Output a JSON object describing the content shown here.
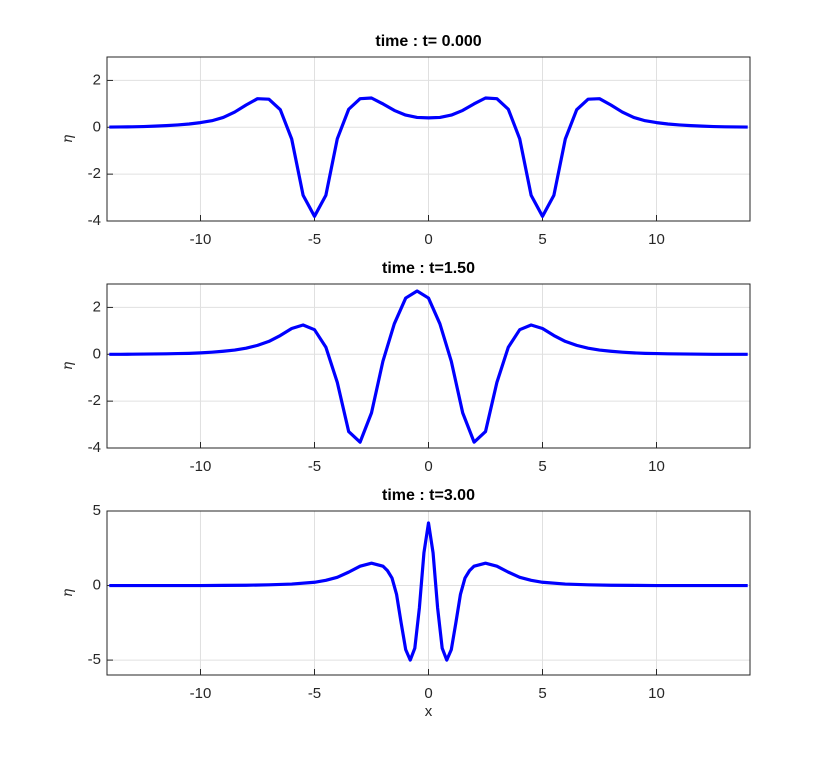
{
  "chart_data": [
    {
      "type": "line",
      "title": "time : t= 0.000",
      "ylabel": "η",
      "x": [
        -14,
        -13.5,
        -13,
        -12.5,
        -12,
        -11.5,
        -11,
        -10.5,
        -10,
        -9.5,
        -9,
        -8.5,
        -8,
        -7.5,
        -7,
        -6.5,
        -6,
        -5.5,
        -5,
        -4.5,
        -4,
        -3.5,
        -3,
        -2.5,
        -2,
        -1.5,
        -1,
        -0.5,
        0,
        0.5,
        1,
        1.5,
        2,
        2.5,
        3,
        3.5,
        4,
        4.5,
        5,
        5.5,
        6,
        6.5,
        7,
        7.5,
        8,
        8.5,
        9,
        9.5,
        10,
        10.5,
        11,
        11.5,
        12,
        12.5,
        13,
        13.5,
        14
      ],
      "values": [
        0.01,
        0.015,
        0.02,
        0.03,
        0.05,
        0.07,
        0.1,
        0.14,
        0.2,
        0.28,
        0.42,
        0.65,
        0.95,
        1.22,
        1.2,
        0.75,
        -0.5,
        -2.9,
        -3.8,
        -2.9,
        -0.49,
        0.77,
        1.22,
        1.25,
        1.0,
        0.72,
        0.52,
        0.42,
        0.4,
        0.42,
        0.52,
        0.72,
        1.0,
        1.25,
        1.22,
        0.77,
        -0.49,
        -2.9,
        -3.8,
        -2.9,
        -0.5,
        0.75,
        1.2,
        1.22,
        0.95,
        0.65,
        0.42,
        0.28,
        0.2,
        0.14,
        0.1,
        0.07,
        0.05,
        0.03,
        0.02,
        0.015,
        0.01
      ],
      "color": "#0000ff",
      "xlim": [
        -14.1,
        14.1
      ],
      "ylim": [
        -4,
        3
      ],
      "xticks": [
        -10,
        -5,
        0,
        5,
        10
      ],
      "yticks": [
        -4,
        -2,
        0,
        2
      ],
      "grid": true
    },
    {
      "type": "line",
      "title": "time : t=1.50",
      "ylabel": "η",
      "x": [
        -14,
        -13.5,
        -13,
        -12.5,
        -12,
        -11.5,
        -11,
        -10.5,
        -10,
        -9.5,
        -9,
        -8.5,
        -8,
        -7.5,
        -7,
        -6.5,
        -6,
        -5.5,
        -5,
        -4.5,
        -4,
        -3.5,
        -3,
        -2.5,
        -2,
        -1.5,
        -1,
        -0.5,
        0,
        0.5,
        1,
        1.5,
        2,
        2.5,
        3,
        3.5,
        4,
        4.5,
        5,
        5.5,
        6,
        6.5,
        7,
        7.5,
        8,
        8.5,
        9,
        9.5,
        10,
        10.5,
        11,
        11.5,
        12,
        12.5,
        13,
        13.5,
        14
      ],
      "values": [
        0,
        0,
        0.005,
        0.01,
        0.015,
        0.02,
        0.03,
        0.04,
        0.06,
        0.09,
        0.13,
        0.18,
        0.26,
        0.38,
        0.55,
        0.8,
        1.1,
        1.25,
        1.05,
        0.3,
        -1.2,
        -3.3,
        -3.75,
        -2.5,
        -0.3,
        1.3,
        2.4,
        2.7,
        2.4,
        1.3,
        -0.3,
        -2.5,
        -3.75,
        -3.3,
        -1.2,
        0.3,
        1.05,
        1.25,
        1.1,
        0.8,
        0.55,
        0.38,
        0.26,
        0.18,
        0.13,
        0.09,
        0.06,
        0.04,
        0.03,
        0.02,
        0.015,
        0.01,
        0.005,
        0,
        0,
        0,
        0
      ],
      "color": "#0000ff",
      "xlim": [
        -14.1,
        14.1
      ],
      "ylim": [
        -4,
        3
      ],
      "xticks": [
        -10,
        -5,
        0,
        5,
        10
      ],
      "yticks": [
        -4,
        -2,
        0,
        2
      ],
      "grid": true
    },
    {
      "type": "line",
      "title": "time : t=3.00",
      "ylabel": "η",
      "xlabel": "x",
      "x": [
        -14,
        -12,
        -10,
        -9,
        -8,
        -7,
        -6,
        -5,
        -4.5,
        -4,
        -3.5,
        -3,
        -2.5,
        -2.0,
        -1.8,
        -1.6,
        -1.4,
        -1.2,
        -1.0,
        -0.8,
        -0.6,
        -0.4,
        -0.2,
        0,
        0.2,
        0.4,
        0.6,
        0.8,
        1.0,
        1.2,
        1.4,
        1.6,
        1.8,
        2.0,
        2.5,
        3,
        3.5,
        4,
        4.5,
        5,
        6,
        7,
        8,
        9,
        10,
        12,
        14
      ],
      "values": [
        0,
        0,
        0,
        0.01,
        0.02,
        0.05,
        0.1,
        0.22,
        0.35,
        0.55,
        0.9,
        1.3,
        1.5,
        1.3,
        1.0,
        0.5,
        -0.6,
        -2.5,
        -4.3,
        -5.0,
        -4.2,
        -1.5,
        2.2,
        4.2,
        2.2,
        -1.5,
        -4.2,
        -5.0,
        -4.3,
        -2.5,
        -0.6,
        0.5,
        1.0,
        1.3,
        1.5,
        1.3,
        0.9,
        0.55,
        0.35,
        0.22,
        0.1,
        0.05,
        0.02,
        0.01,
        0,
        0,
        0
      ],
      "color": "#0000ff",
      "xlim": [
        -14.1,
        14.1
      ],
      "ylim": [
        -6,
        5
      ],
      "xticks": [
        -10,
        -5,
        0,
        5,
        10
      ],
      "yticks": [
        -5,
        0,
        5
      ],
      "grid": true
    }
  ]
}
